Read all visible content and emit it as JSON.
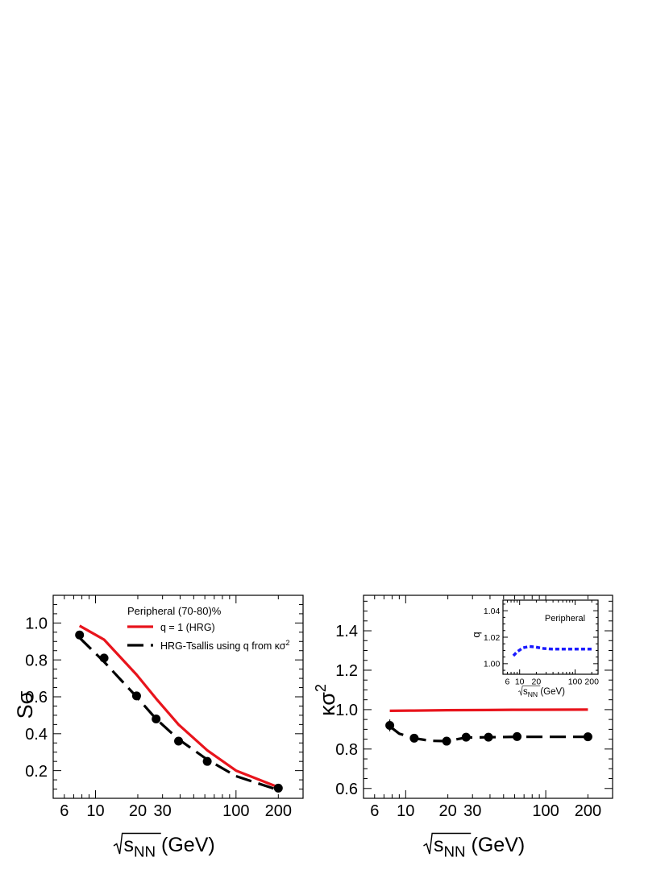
{
  "chart_data": [
    {
      "type": "line",
      "id": "s-sigma",
      "ylabel": "Sσ",
      "xlabel_root": "s",
      "xlabel_sub": "NN",
      "xlabel_unit": " (GeV)",
      "xscale": "log",
      "xlim": [
        5,
        300
      ],
      "ylim": [
        0.05,
        1.15
      ],
      "xticks_labeled": [
        6,
        10,
        20,
        30,
        100,
        200
      ],
      "yticks_labeled": [
        0.2,
        0.4,
        0.6,
        0.8,
        1.0
      ],
      "ytick_labels": [
        "0.2",
        "0.4",
        "0.6",
        "0.8",
        "1.0"
      ],
      "legend": {
        "header": "Peripheral (70-80)%",
        "entries": [
          {
            "label": "q = 1 (HRG)",
            "series": "hrg"
          },
          {
            "label": "HRG-Tsallis using q from κσ",
            "sup": "2",
            "series": "tsallis"
          }
        ]
      },
      "series": [
        {
          "key": "hrg",
          "name": "q = 1 (HRG)",
          "color": "#e8141c",
          "style": "solid",
          "x": [
            7.7,
            11.5,
            19.6,
            27,
            39,
            62.4,
            100,
            200
          ],
          "y": [
            0.985,
            0.91,
            0.72,
            0.59,
            0.45,
            0.31,
            0.2,
            0.11
          ]
        },
        {
          "key": "tsallis",
          "name": "HRG-Tsallis using q from κσ²",
          "color": "#000000",
          "style": "dashed",
          "x": [
            7.7,
            11.5,
            19.6,
            27,
            39,
            62.4,
            100,
            200
          ],
          "y": [
            0.92,
            0.79,
            0.6,
            0.48,
            0.37,
            0.26,
            0.17,
            0.095
          ]
        },
        {
          "key": "data",
          "name": "",
          "color": "#000000",
          "style": "markers",
          "x": [
            7.7,
            11.5,
            19.6,
            27,
            39,
            62.4,
            200
          ],
          "y": [
            0.935,
            0.81,
            0.605,
            0.48,
            0.36,
            0.25,
            0.105
          ]
        }
      ]
    },
    {
      "type": "line",
      "id": "kappa-sigma2",
      "ylabel": "κσ",
      "ylabel_sup": "2",
      "xlabel_root": "s",
      "xlabel_sub": "NN",
      "xlabel_unit": " (GeV)",
      "xscale": "log",
      "xlim": [
        5,
        300
      ],
      "ylim": [
        0.55,
        1.58
      ],
      "xticks_labeled": [
        6,
        10,
        20,
        30,
        100,
        200
      ],
      "yticks_labeled": [
        0.6,
        0.8,
        1.0,
        1.2,
        1.4
      ],
      "ytick_labels": [
        "0.6",
        "0.8",
        "1.0",
        "1.2",
        "1.4"
      ],
      "series": [
        {
          "key": "hrg",
          "name": "",
          "color": "#e8141c",
          "style": "solid",
          "x": [
            7.7,
            11.5,
            19.6,
            39,
            62.4,
            200
          ],
          "y": [
            0.994,
            0.995,
            0.997,
            0.998,
            0.999,
            1.0
          ]
        },
        {
          "key": "tsallis",
          "name": "",
          "color": "#000000",
          "style": "dashed",
          "x": [
            7.7,
            9,
            11.5,
            15,
            19.6,
            27,
            39,
            62.4,
            200
          ],
          "y": [
            0.915,
            0.878,
            0.855,
            0.842,
            0.84,
            0.858,
            0.86,
            0.862,
            0.862
          ]
        },
        {
          "key": "data",
          "name": "",
          "color": "#000000",
          "style": "markers",
          "x": [
            7.7,
            11.5,
            19.6,
            27,
            39,
            62.4,
            200
          ],
          "y": [
            0.92,
            0.855,
            0.84,
            0.86,
            0.86,
            0.863,
            0.862
          ],
          "yerr": [
            0.03,
            0.012,
            0.01,
            0.01,
            0.01,
            0.01,
            0.01
          ]
        }
      ]
    },
    {
      "type": "line",
      "id": "q-inset",
      "annotation": "Peripheral",
      "ylabel": "q",
      "xlabel_root": "s",
      "xlabel_sub": "NN",
      "xlabel_unit": " (GeV)",
      "xscale": "log",
      "xlim": [
        5,
        260
      ],
      "ylim": [
        0.992,
        1.048
      ],
      "xticks_labeled": [
        6,
        10,
        20,
        100,
        200
      ],
      "yticks_labeled": [
        1.0,
        1.02,
        1.04
      ],
      "ytick_labels": [
        "1.00",
        "1.02",
        "1.04"
      ],
      "series": [
        {
          "key": "q",
          "name": "",
          "color": "#1a1aff",
          "style": "dotted",
          "x": [
            7.7,
            9,
            11.5,
            15,
            19.6,
            27,
            39,
            62.4,
            100,
            200
          ],
          "y": [
            1.006,
            1.009,
            1.012,
            1.013,
            1.0125,
            1.0115,
            1.011,
            1.011,
            1.011,
            1.011
          ]
        }
      ]
    }
  ]
}
